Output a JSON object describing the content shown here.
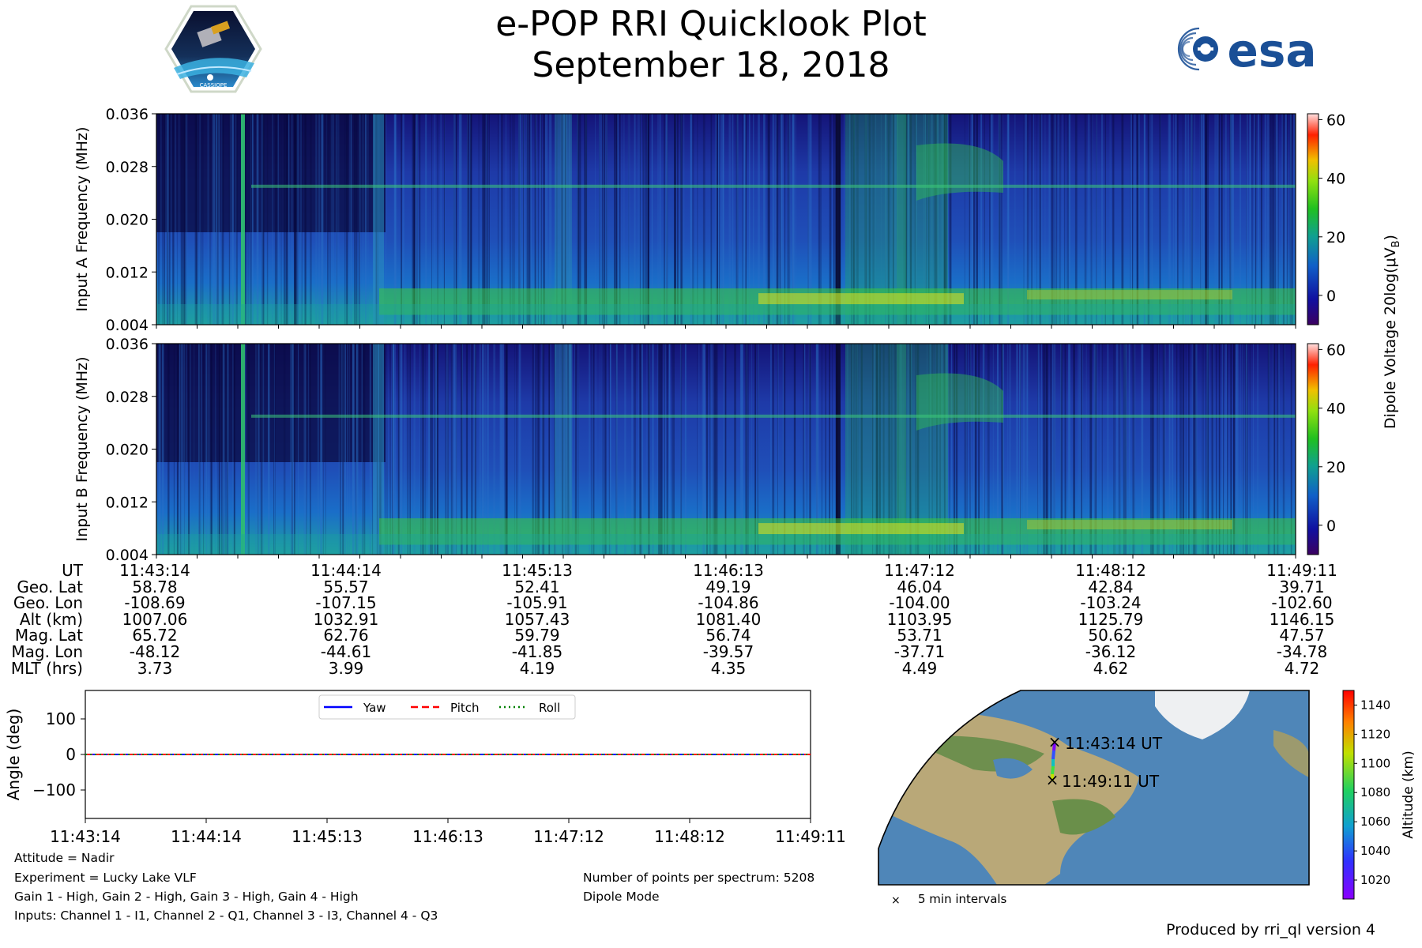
{
  "header": {
    "title": "e-POP RRI Quicklook Plot",
    "date": "September 18, 2018",
    "left_logo_text": "CASSIOPE",
    "right_logo_text": "esa"
  },
  "chart_data": [
    {
      "type": "heatmap",
      "name": "input-a-spectrogram",
      "ylabel": "Input A Frequency (MHz)",
      "ylim": [
        0.004,
        0.036
      ],
      "yticks": [
        "0.036",
        "0.028",
        "0.020",
        "0.012",
        "0.004"
      ],
      "colorbar": {
        "label": "Dipole Voltage 20log(μV_B)",
        "ticks": [
          "60",
          "40",
          "20",
          "0"
        ],
        "range": [
          -10,
          62
        ]
      }
    },
    {
      "type": "heatmap",
      "name": "input-b-spectrogram",
      "ylabel": "Input B Frequency (MHz)",
      "ylim": [
        0.004,
        0.036
      ],
      "yticks": [
        "0.036",
        "0.028",
        "0.020",
        "0.012",
        "0.004"
      ],
      "colorbar": {
        "ticks": [
          "60",
          "40",
          "20",
          "0"
        ],
        "range": [
          -10,
          62
        ]
      }
    },
    {
      "type": "line",
      "name": "attitude",
      "ylabel": "Angle (deg)",
      "ylim": [
        -180,
        180
      ],
      "yticks": [
        100,
        0,
        -100
      ],
      "ytick_labels": [
        "100",
        "0",
        "−100"
      ],
      "xticks": [
        "11:43:14",
        "11:44:14",
        "11:45:13",
        "11:46:13",
        "11:47:12",
        "11:48:12",
        "11:49:11"
      ],
      "series": [
        {
          "name": "Yaw",
          "values": [
            0,
            0,
            0,
            0,
            0,
            0,
            0
          ],
          "color": "#0000ff",
          "style": "solid"
        },
        {
          "name": "Pitch",
          "values": [
            0,
            0,
            0,
            0,
            0,
            0,
            0
          ],
          "color": "#ff0000",
          "style": "dashed"
        },
        {
          "name": "Roll",
          "values": [
            0,
            0,
            0,
            0,
            0,
            0,
            0
          ],
          "color": "#008000",
          "style": "dotted"
        }
      ]
    },
    {
      "type": "scatter",
      "name": "ground-track",
      "start_label": "11:43:14 UT",
      "end_label": "11:49:11 UT",
      "interval_label": "5 min intervals",
      "colorbar": {
        "label": "Altitude (km)",
        "ticks": [
          "1140",
          "1120",
          "1100",
          "1080",
          "1060",
          "1040",
          "1020"
        ]
      }
    }
  ],
  "ephemeris": {
    "labels": [
      "UT",
      "Geo. Lat",
      "Geo. Lon",
      "Alt (km)",
      "Mag. Lat",
      "Mag. Lon",
      "MLT (hrs)"
    ],
    "columns": [
      [
        "11:43:14",
        "58.78",
        "-108.69",
        "1007.06",
        "65.72",
        "-48.12",
        "3.73"
      ],
      [
        "11:44:14",
        "55.57",
        "-107.15",
        "1032.91",
        "62.76",
        "-44.61",
        "3.99"
      ],
      [
        "11:45:13",
        "52.41",
        "-105.91",
        "1057.43",
        "59.79",
        "-41.85",
        "4.19"
      ],
      [
        "11:46:13",
        "49.19",
        "-104.86",
        "1081.40",
        "56.74",
        "-39.57",
        "4.35"
      ],
      [
        "11:47:12",
        "46.04",
        "-104.00",
        "1103.95",
        "53.71",
        "-37.71",
        "4.49"
      ],
      [
        "11:48:12",
        "42.84",
        "-103.24",
        "1125.79",
        "50.62",
        "-36.12",
        "4.62"
      ],
      [
        "11:49:11",
        "39.71",
        "-102.60",
        "1146.15",
        "47.57",
        "-34.78",
        "4.72"
      ]
    ]
  },
  "info": {
    "attitude": "Attitude = Nadir",
    "experiment": "Experiment = Lucky Lake VLF",
    "gains": "Gain 1 - High, Gain 2 - High, Gain 3 - High, Gain 4 - High",
    "inputs": "Inputs: Channel 1 - I1, Channel 2 - Q1, Channel 3 - I3, Channel 4 - Q3",
    "points": "Number of points per spectrum: 5208",
    "mode": "Dipole Mode",
    "produced_by": "Produced by rri_ql version 4"
  }
}
